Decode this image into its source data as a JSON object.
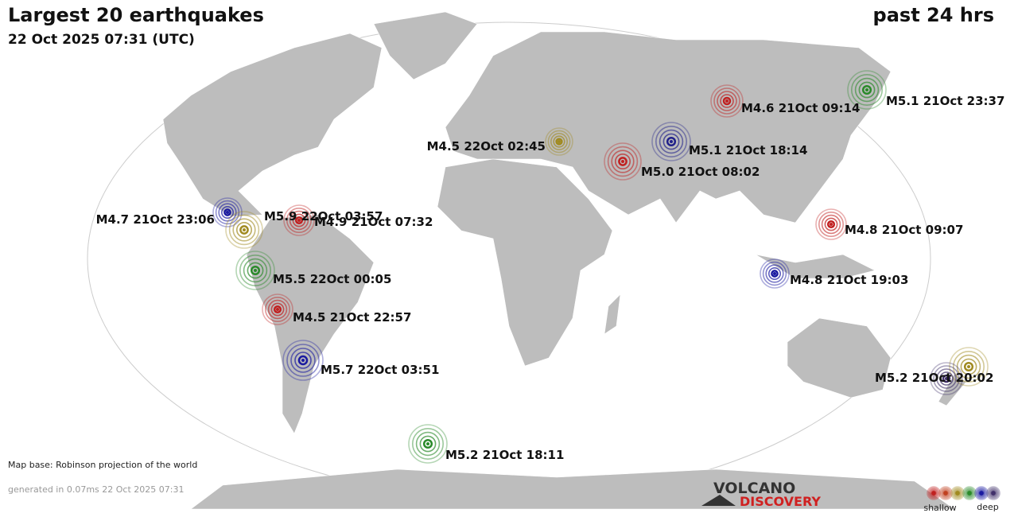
{
  "header": {
    "title": "Largest 20 earthquakes",
    "subtitle": "22 Oct 2025 07:31 (UTC)",
    "period": "past 24 hrs"
  },
  "quakes": [
    {
      "label": "M4.6 21Oct 09:14",
      "color": "#c02020"
    },
    {
      "label": "M5.1 21Oct 23:37",
      "color": "#2a8a2a"
    },
    {
      "label": "M4.5 22Oct 02:45",
      "color": "#a08a20"
    },
    {
      "label": "M5.1 21Oct 18:14",
      "color": "#20208a"
    },
    {
      "label": "M5.0 21Oct 08:02",
      "color": "#c02020"
    },
    {
      "label": "M4.7 21Oct 23:06",
      "color": "#1a1aa0"
    },
    {
      "label": "M4.9 21Oct 07:32",
      "color": "#c02020"
    },
    {
      "label": "M5.9 22Oct 03:57",
      "color": "#a08a20"
    },
    {
      "label": "M4.8 21Oct 09:07",
      "color": "#c02020"
    },
    {
      "label": "M5.5 22Oct 00:05",
      "color": "#2a8a2a"
    },
    {
      "label": "M4.8 21Oct 19:03",
      "color": "#1a1aa0"
    },
    {
      "label": "M4.5 21Oct 22:57",
      "color": "#c02020"
    },
    {
      "label": "M5.7 22Oct 03:51",
      "color": "#1a1aa0"
    },
    {
      "label": null,
      "color": "#a08a20"
    },
    {
      "label": "M5.2 21Oct 20:02",
      "color": "#40306a"
    },
    {
      "label": "M5.2 21Oct 18:11",
      "color": "#2a8a2a"
    }
  ],
  "footer": {
    "map_base": "Map base: Robinson projection of the world",
    "generated": "generated in 0.07ms 22 Oct 2025 07:31"
  },
  "logo": {
    "top": "VOLCANO",
    "bottom": "DISCOVERY"
  },
  "legend": {
    "shallow": "shallow",
    "deep": "deep",
    "colors": [
      "#c02020",
      "#c04020",
      "#a08a20",
      "#2a8a2a",
      "#1a1aa0",
      "#40306a"
    ]
  }
}
